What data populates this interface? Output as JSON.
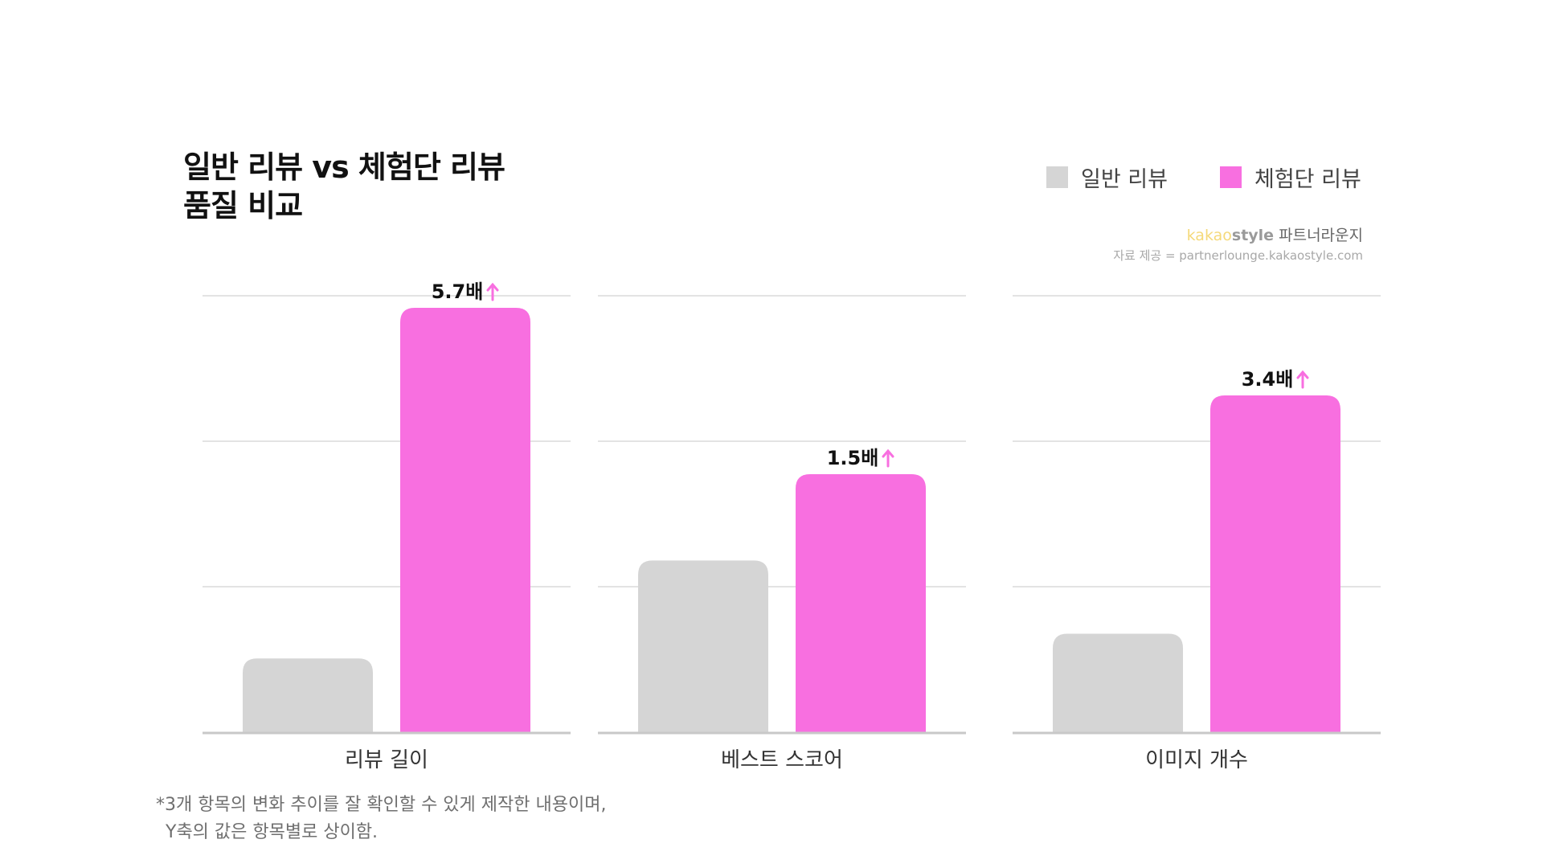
{
  "header": {
    "title": "일반 리뷰 vs 체험단 리뷰\n품질 비교"
  },
  "legend": [
    {
      "label": "일반 리뷰",
      "color": "#d5d5d5"
    },
    {
      "label": "체험단 리뷰",
      "color": "#f86fe0"
    }
  ],
  "brand": {
    "kakao": "kakao",
    "style": "style",
    "suffix": " 파트너라운지",
    "source": "자료 제공 = partnerlounge.kakaostyle.com"
  },
  "footnote": {
    "line1": "*3개 항목의 변화 추이를 잘 확인할 수 있게 제작한 내용이며,",
    "line2": "Y축의 값은 항목별로 상이함."
  },
  "chart_data": {
    "type": "bar",
    "title": "일반 리뷰 vs 체험단 리뷰 품질 비교",
    "grid": true,
    "legend_position": "top-right",
    "arrow_color": "#f86fe0",
    "y_axis_labels": "none",
    "series": [
      {
        "name": "일반 리뷰",
        "color": "#d5d5d5"
      },
      {
        "name": "체험단 리뷰",
        "color": "#f86fe0"
      }
    ],
    "panels": [
      {
        "category": "리뷰 길이",
        "values": [
          1,
          5.7
        ],
        "data_label": "5.7배"
      },
      {
        "category": "베스트 스코어",
        "values": [
          1,
          1.5
        ],
        "data_label": "1.5배"
      },
      {
        "category": "이미지 개수",
        "values": [
          1,
          3.4
        ],
        "data_label": "3.4배"
      }
    ]
  }
}
